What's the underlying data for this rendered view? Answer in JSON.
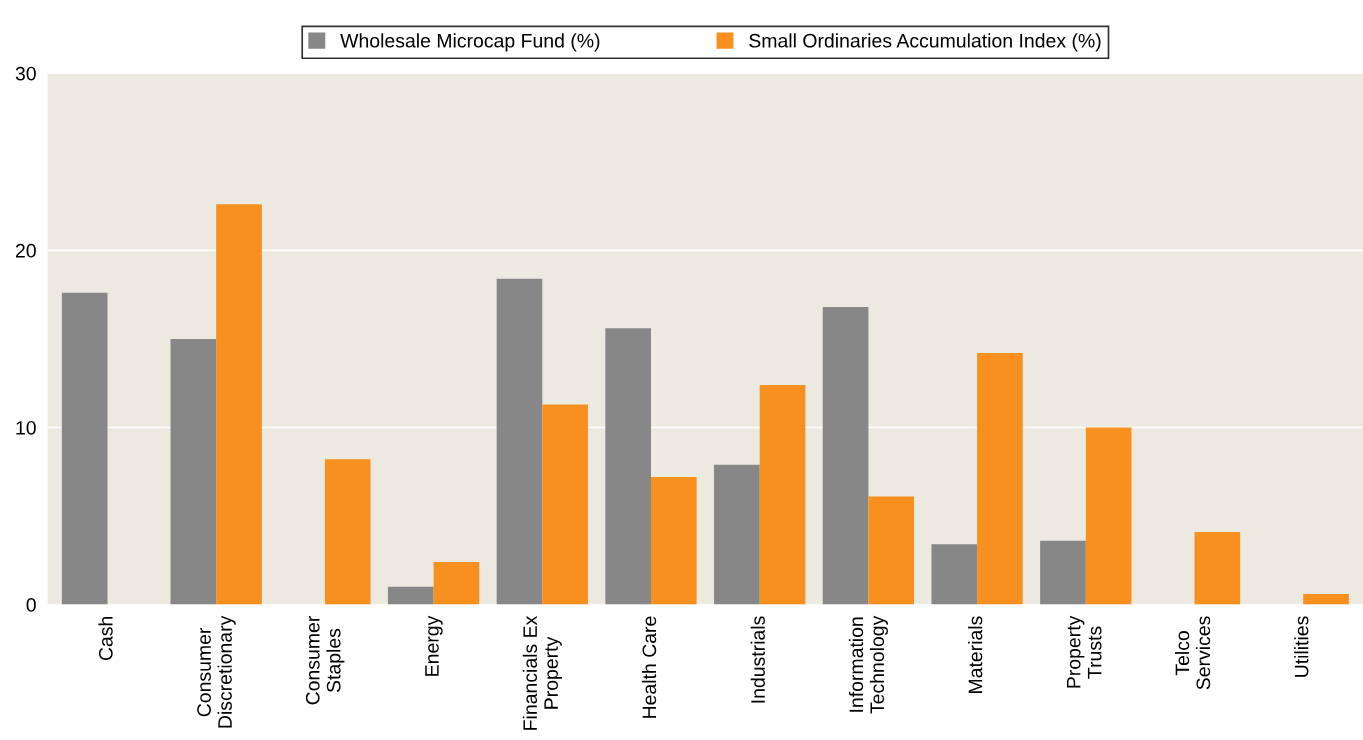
{
  "chart_data": {
    "type": "bar",
    "categories": [
      "Cash",
      "Consumer\nDiscretionary",
      "Consumer\nStaples",
      "Energy",
      "Financials Ex\nProperty",
      "Health Care",
      "Industrials",
      "Information\nTechnology",
      "Materials",
      "Property\nTrusts",
      "Telco\nServices",
      "Utilities"
    ],
    "series": [
      {
        "name": "Wholesale Microcap Fund (%)",
        "color": "#878787",
        "values": [
          17.6,
          15.0,
          0,
          1.0,
          18.4,
          15.6,
          7.9,
          16.8,
          3.4,
          3.6,
          0,
          0
        ]
      },
      {
        "name": "Small Ordinaries Accumulation Index (%)",
        "color": "#f7901e",
        "values": [
          0,
          22.6,
          8.2,
          2.4,
          11.3,
          7.2,
          12.4,
          6.1,
          14.2,
          10.0,
          4.1,
          0.6
        ]
      }
    ],
    "ylim": [
      0,
      30
    ],
    "yticks": [
      0,
      10,
      20,
      30
    ],
    "grid": "y",
    "legend": "top"
  }
}
